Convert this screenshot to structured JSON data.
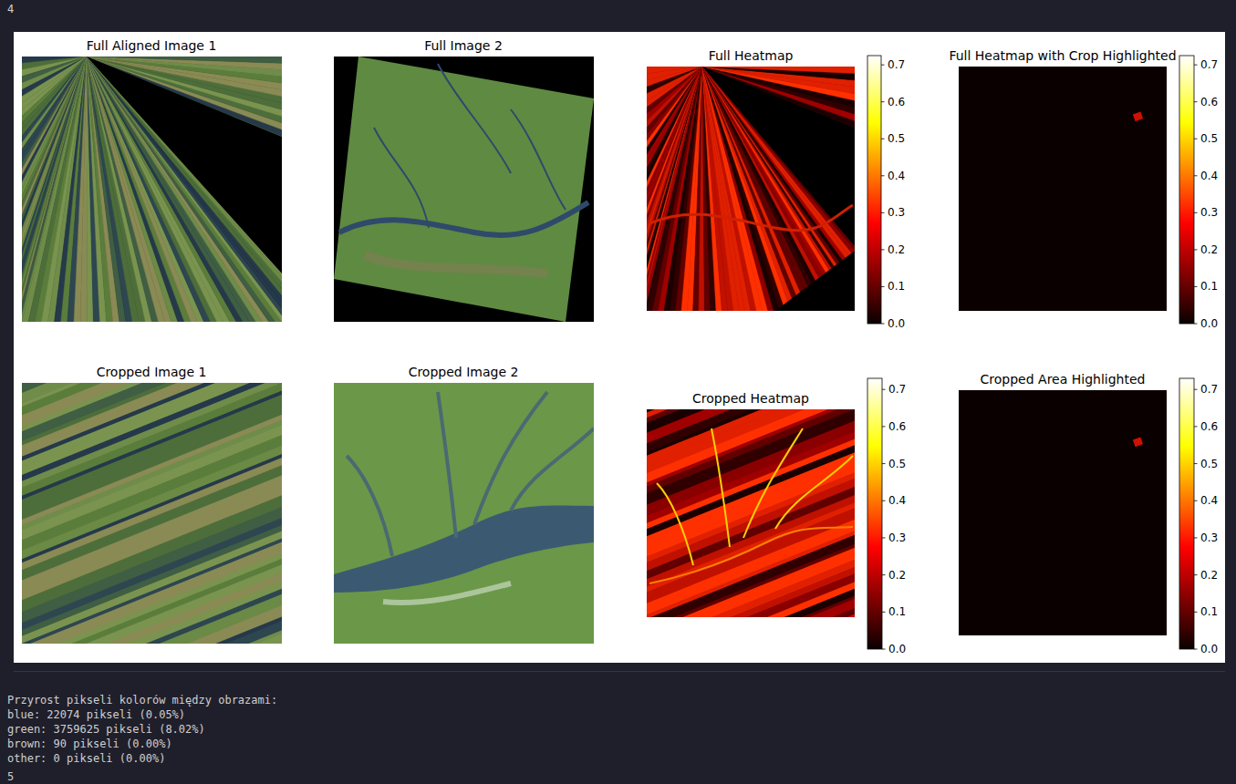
{
  "cell_label": "4",
  "next_cell_label": "5",
  "chart_data": [
    {
      "type": "image",
      "title": "Full Aligned Image 1"
    },
    {
      "type": "image",
      "title": "Full Image 2"
    },
    {
      "type": "heatmap",
      "title": "Full Heatmap",
      "colorbar_range": [
        0,
        0.725
      ],
      "colorbar_ticks": [
        {
          "value": 0,
          "label": "0.0"
        },
        0.1,
        0.2,
        0.3,
        0.4,
        0.5,
        0.6,
        0.7
      ]
    },
    {
      "type": "heatmap",
      "title": "Full Heatmap with Crop Highlighted",
      "colorbar_range": [
        0,
        0.725
      ],
      "colorbar_ticks": [
        {
          "value": 0,
          "label": "0.0"
        },
        0.1,
        0.2,
        0.3,
        0.4,
        0.5,
        0.6,
        0.7
      ]
    },
    {
      "type": "image",
      "title": "Cropped Image 1"
    },
    {
      "type": "image",
      "title": "Cropped Image 2"
    },
    {
      "type": "heatmap",
      "title": "Cropped Heatmap",
      "colorbar_range": [
        0,
        0.73
      ],
      "colorbar_ticks": [
        {
          "value": 0,
          "label": "0.0"
        },
        0.1,
        0.2,
        0.3,
        0.4,
        0.5,
        0.6,
        0.7
      ]
    },
    {
      "type": "heatmap",
      "title": "Cropped Area Highlighted",
      "colorbar_range": [
        0,
        0.73
      ],
      "colorbar_ticks": [
        {
          "value": 0,
          "label": "0.0"
        },
        0.1,
        0.2,
        0.3,
        0.4,
        0.5,
        0.6,
        0.7
      ]
    }
  ],
  "console": {
    "heading": "Przyrost pikseli kolorów między obrazami:",
    "lines": [
      "blue: 22074 pikseli (0.05%)",
      "green: 3759625 pikseli (8.02%)",
      "brown: 90 pikseli (0.00%)",
      "other: 0 pikseli (0.00%)"
    ]
  }
}
